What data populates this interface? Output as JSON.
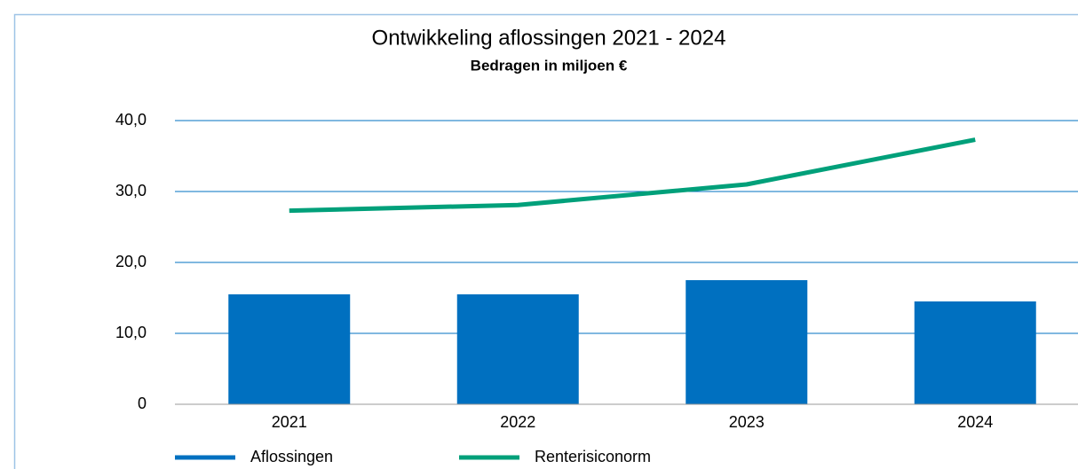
{
  "chart_data": {
    "type": "bar",
    "title": "Ontwikkeling aflossingen 2021 - 2024",
    "subtitle": "Bedragen in miljoen €",
    "categories": [
      "2021",
      "2022",
      "2023",
      "2024"
    ],
    "series": [
      {
        "name": "Aflossingen",
        "type": "bar",
        "color": "#0070c0",
        "values": [
          15.5,
          15.5,
          17.5,
          14.5
        ]
      },
      {
        "name": "Renterisiconorm",
        "type": "line",
        "color": "#00a07a",
        "values": [
          27.3,
          28.1,
          31.0,
          37.3
        ]
      }
    ],
    "ylim": [
      0,
      40
    ],
    "yticks": [
      0,
      {
        "value": 10,
        "label": "10,0"
      },
      {
        "value": 20,
        "label": "20,0"
      },
      {
        "value": 30,
        "label": "30,0"
      },
      {
        "value": 40,
        "label": "40,0"
      }
    ],
    "grid": true,
    "legend": "bottom"
  }
}
